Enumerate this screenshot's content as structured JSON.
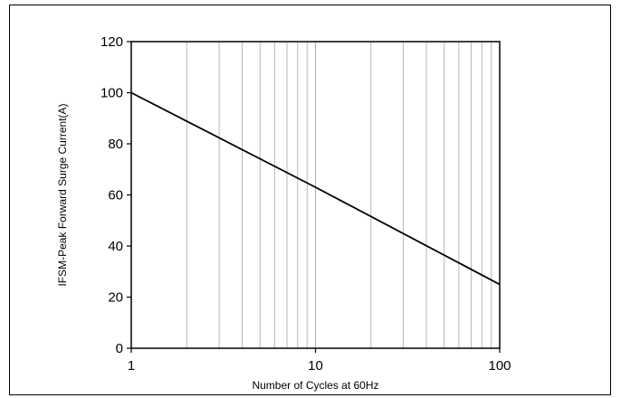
{
  "chart_data": {
    "type": "line",
    "xlabel": "Number of Cycles at 60Hz",
    "ylabel": "IFSM-Peak Forward Surge Current(A)",
    "x_scale": "log",
    "xlim": [
      1,
      100
    ],
    "ylim": [
      0,
      120
    ],
    "x_ticks": [
      "1",
      "10",
      "100"
    ],
    "y_ticks": [
      "0",
      "20",
      "40",
      "60",
      "80",
      "100",
      "120"
    ],
    "grid": "vertical-log-minor",
    "series": [
      {
        "x": [
          1,
          10,
          100
        ],
        "y": [
          100,
          63,
          25
        ]
      }
    ],
    "colors": {
      "line": "#000000",
      "grid": "#b0b0b0",
      "axis": "#000000"
    }
  }
}
